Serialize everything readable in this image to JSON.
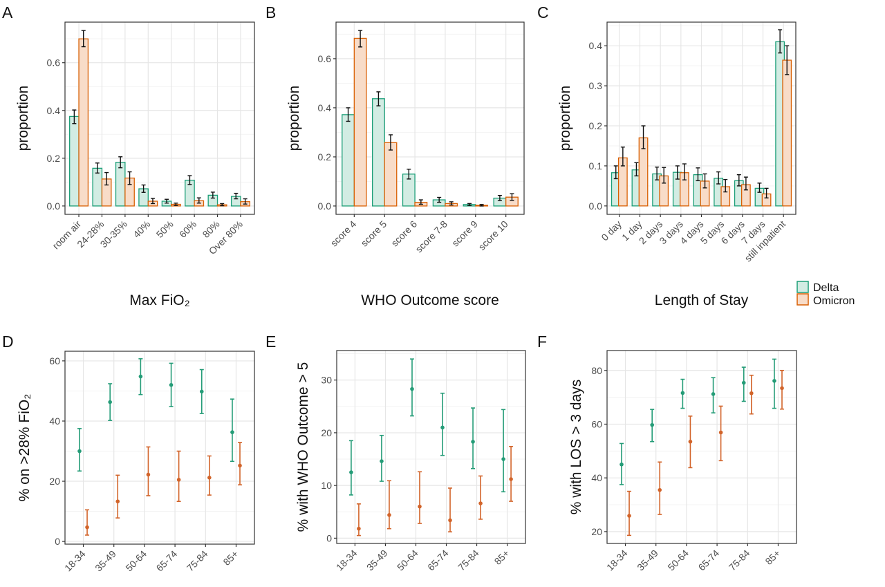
{
  "legend": {
    "items": [
      {
        "label": "Delta",
        "stroke": "#1b9e77",
        "fill": "#d2ece3",
        "point": "#249c77"
      },
      {
        "label": "Omicron",
        "stroke": "#d95f02",
        "fill": "#f8dcc8",
        "point": "#d2642a"
      }
    ]
  },
  "chart_data": [
    {
      "panel": "A",
      "type": "bar",
      "xlabel": "Max FiO₂",
      "ylabel": "proportion",
      "ylim": [
        -0.035,
        0.77
      ],
      "yticks": [
        0.0,
        0.2,
        0.4,
        0.6
      ],
      "ytick_labels": [
        "0.0",
        "0.2",
        "0.4",
        "0.6"
      ],
      "grid": true,
      "categories": [
        "room air",
        "24-28%",
        "30-35%",
        "40%",
        "50%",
        "60%",
        "80%",
        "Over 80%"
      ],
      "series": [
        {
          "name": "Delta",
          "values": [
            0.375,
            0.158,
            0.183,
            0.072,
            0.02,
            0.108,
            0.045,
            0.04
          ],
          "lower": [
            0.345,
            0.138,
            0.16,
            0.057,
            0.012,
            0.09,
            0.033,
            0.03
          ],
          "upper": [
            0.402,
            0.18,
            0.206,
            0.088,
            0.028,
            0.127,
            0.058,
            0.053
          ]
        },
        {
          "name": "Omicron",
          "values": [
            0.7,
            0.113,
            0.117,
            0.02,
            0.007,
            0.022,
            0.005,
            0.018
          ],
          "lower": [
            0.667,
            0.088,
            0.09,
            0.01,
            0.002,
            0.012,
            0.001,
            0.008
          ],
          "upper": [
            0.735,
            0.14,
            0.143,
            0.032,
            0.012,
            0.034,
            0.01,
            0.03
          ]
        }
      ]
    },
    {
      "panel": "B",
      "type": "bar",
      "xlabel": "WHO Outcome score",
      "ylabel": "proportion",
      "ylim": [
        -0.034,
        0.749
      ],
      "yticks": [
        0.0,
        0.2,
        0.4,
        0.6
      ],
      "ytick_labels": [
        "0.0",
        "0.2",
        "0.4",
        "0.6"
      ],
      "grid": true,
      "categories": [
        "score 4",
        "score 5",
        "score 6",
        "score 7-8",
        "score 9",
        "score 10"
      ],
      "series": [
        {
          "name": "Delta",
          "values": [
            0.372,
            0.437,
            0.13,
            0.025,
            0.006,
            0.032
          ],
          "lower": [
            0.345,
            0.408,
            0.11,
            0.015,
            0.002,
            0.022
          ],
          "upper": [
            0.4,
            0.465,
            0.15,
            0.035,
            0.01,
            0.043
          ]
        },
        {
          "name": "Omicron",
          "values": [
            0.683,
            0.258,
            0.015,
            0.01,
            0.003,
            0.036
          ],
          "lower": [
            0.648,
            0.228,
            0.007,
            0.004,
            0.0,
            0.023
          ],
          "upper": [
            0.715,
            0.29,
            0.025,
            0.017,
            0.006,
            0.05
          ]
        }
      ]
    },
    {
      "panel": "C",
      "type": "bar",
      "xlabel": "Length of Stay",
      "ylabel": "proportion",
      "ylim": [
        -0.021,
        0.459
      ],
      "yticks": [
        0.0,
        0.1,
        0.2,
        0.3,
        0.4
      ],
      "ytick_labels": [
        "0.0",
        "0.1",
        "0.2",
        "0.3",
        "0.4"
      ],
      "grid": true,
      "categories": [
        "0 day",
        "1 day",
        "2 days",
        "3 days",
        "4 days",
        "5 days",
        "6 days",
        "7 days",
        "still inpatient"
      ],
      "series": [
        {
          "name": "Delta",
          "values": [
            0.083,
            0.09,
            0.08,
            0.084,
            0.078,
            0.069,
            0.063,
            0.044,
            0.41
          ],
          "lower": [
            0.068,
            0.075,
            0.065,
            0.067,
            0.063,
            0.055,
            0.05,
            0.034,
            0.382
          ],
          "upper": [
            0.1,
            0.108,
            0.097,
            0.1,
            0.095,
            0.085,
            0.078,
            0.057,
            0.44
          ]
        },
        {
          "name": "Omicron",
          "values": [
            0.12,
            0.17,
            0.075,
            0.083,
            0.062,
            0.048,
            0.053,
            0.03,
            0.364
          ],
          "lower": [
            0.1,
            0.143,
            0.057,
            0.065,
            0.045,
            0.035,
            0.04,
            0.02,
            0.328
          ],
          "upper": [
            0.147,
            0.2,
            0.096,
            0.105,
            0.08,
            0.066,
            0.072,
            0.044,
            0.4
          ]
        }
      ]
    },
    {
      "panel": "D",
      "type": "scatter",
      "xlabel": "",
      "ylabel": "% on >28% FiO₂",
      "ylim": [
        -0.9,
        63.2
      ],
      "yticks": [
        0,
        20,
        40,
        60
      ],
      "ytick_labels": [
        "0",
        "20",
        "40",
        "60"
      ],
      "grid": true,
      "categories": [
        "18-34",
        "35-49",
        "50-64",
        "65-74",
        "75-84",
        "85+"
      ],
      "series": [
        {
          "name": "Delta",
          "values": [
            30.0,
            46.3,
            54.8,
            52.0,
            49.8,
            36.3
          ],
          "lower": [
            23.4,
            40.2,
            48.8,
            44.8,
            42.5,
            26.6
          ],
          "upper": [
            37.5,
            52.4,
            60.7,
            59.2,
            57.1,
            47.3
          ]
        },
        {
          "name": "Omicron",
          "values": [
            4.7,
            13.3,
            22.2,
            20.5,
            21.2,
            25.2
          ],
          "lower": [
            2.1,
            7.8,
            15.2,
            13.3,
            15.4,
            18.8
          ],
          "upper": [
            10.5,
            22.0,
            31.4,
            30.0,
            28.4,
            32.9
          ]
        }
      ]
    },
    {
      "panel": "E",
      "type": "scatter",
      "xlabel": "",
      "ylabel": "% with WHO Outcome > 5",
      "ylim": [
        -1.0,
        35.6
      ],
      "yticks": [
        0,
        10,
        20,
        30
      ],
      "ytick_labels": [
        "0",
        "10",
        "20",
        "30"
      ],
      "grid": true,
      "categories": [
        "18-34",
        "35-49",
        "50-64",
        "65-74",
        "75-84",
        "85+"
      ],
      "series": [
        {
          "name": "Delta",
          "values": [
            12.5,
            14.6,
            28.3,
            21.0,
            18.3,
            15.0
          ],
          "lower": [
            8.2,
            10.8,
            23.2,
            15.7,
            13.2,
            8.8
          ],
          "upper": [
            18.5,
            19.5,
            34.0,
            27.5,
            24.7,
            24.4
          ]
        },
        {
          "name": "Omicron",
          "values": [
            1.8,
            4.4,
            6.0,
            3.4,
            6.6,
            11.2
          ],
          "lower": [
            0.5,
            1.8,
            2.8,
            1.2,
            3.6,
            7.0
          ],
          "upper": [
            6.5,
            10.9,
            12.6,
            9.5,
            11.8,
            17.4
          ]
        }
      ]
    },
    {
      "panel": "F",
      "type": "scatter",
      "xlabel": "",
      "ylabel": "% with LOS > 3 days",
      "ylim": [
        15.6,
        87.4
      ],
      "yticks": [
        20,
        40,
        60,
        80
      ],
      "ytick_labels": [
        "20",
        "40",
        "60",
        "80"
      ],
      "grid": true,
      "categories": [
        "18-34",
        "35-49",
        "50-64",
        "65-74",
        "75-84",
        "85+"
      ],
      "series": [
        {
          "name": "Delta",
          "values": [
            45.0,
            59.7,
            71.6,
            71.2,
            75.4,
            76.1
          ],
          "lower": [
            37.5,
            53.5,
            65.9,
            64.2,
            68.5,
            65.9
          ],
          "upper": [
            52.8,
            65.5,
            76.7,
            77.3,
            81.2,
            84.2
          ]
        },
        {
          "name": "Omicron",
          "values": [
            25.9,
            35.5,
            53.5,
            56.9,
            71.5,
            73.4
          ],
          "lower": [
            18.6,
            26.4,
            43.8,
            46.4,
            63.8,
            65.6
          ],
          "upper": [
            35.0,
            45.9,
            63.0,
            66.7,
            78.2,
            80.0
          ]
        }
      ]
    }
  ]
}
